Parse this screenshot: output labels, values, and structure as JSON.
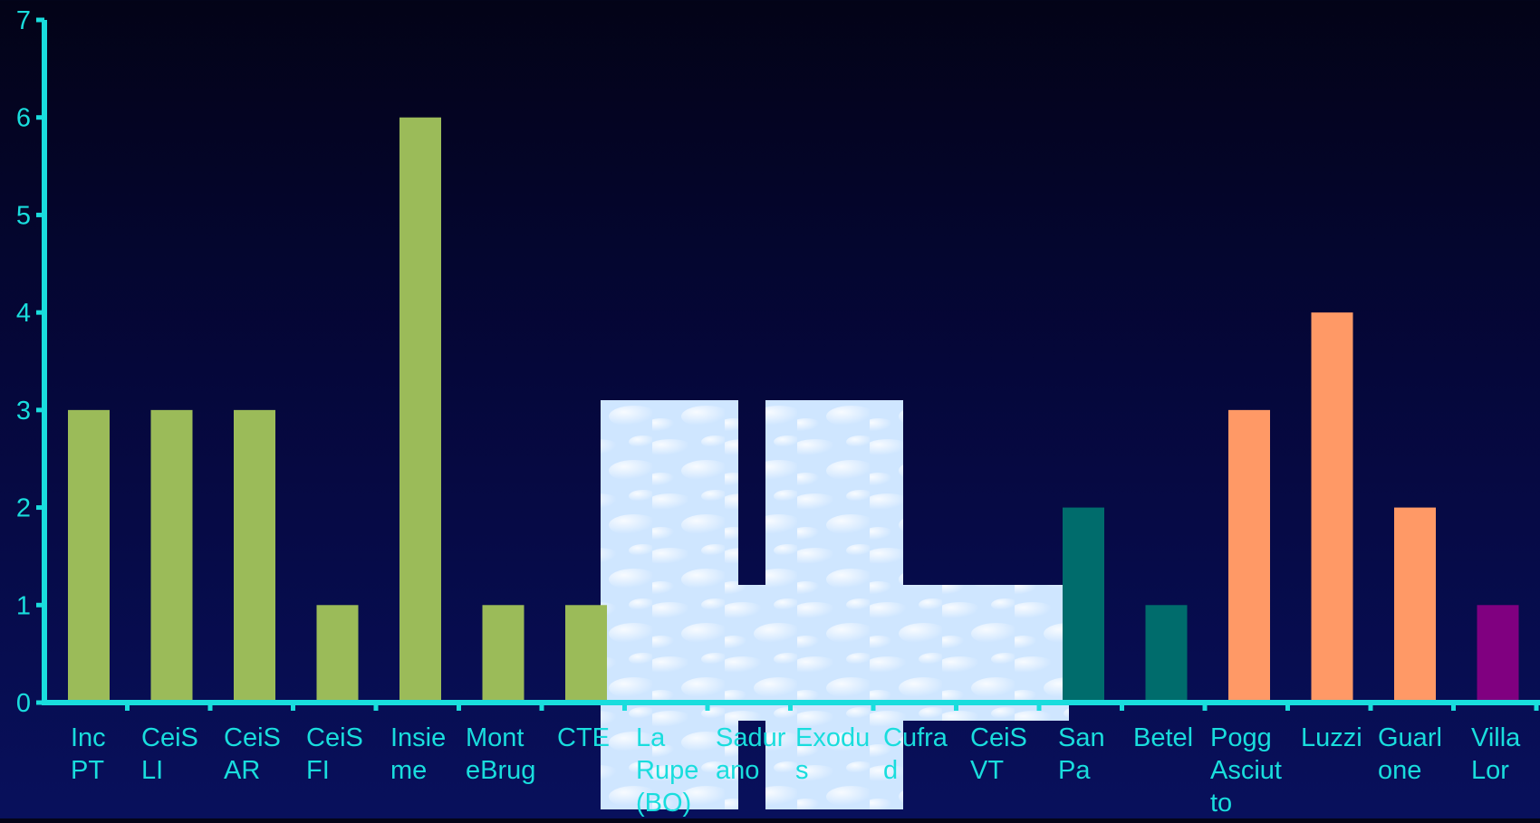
{
  "chart_data": {
    "type": "bar",
    "categories": [
      "Inc PT",
      "CeiS LI",
      "CeiS AR",
      "CeiS FI",
      "Insieme",
      "MonteBrug",
      "CTE",
      "La Rupe (BO)",
      "Saduriano",
      "Exodus",
      "Cufrad",
      "CeiS VT",
      "San Pa",
      "Betel",
      "Pogg Asciutto",
      "Luzzi",
      "Guarlone",
      "Villa Lor"
    ],
    "category_label_lines": [
      [
        "Inc",
        "PT"
      ],
      [
        "CeiS",
        "LI"
      ],
      [
        "CeiS",
        "AR"
      ],
      [
        "CeiS",
        "FI"
      ],
      [
        "Insie",
        "me"
      ],
      [
        "Mont",
        "eBrug"
      ],
      [
        "CTE"
      ],
      [
        "La",
        "Rupe",
        "(BO)"
      ],
      [
        "Sadur",
        "ano"
      ],
      [
        "Exodu",
        "s"
      ],
      [
        "Cufra",
        "d"
      ],
      [
        "CeiS",
        "VT"
      ],
      [
        "San",
        "Pa"
      ],
      [
        "Betel"
      ],
      [
        "Pogg",
        "Asciut",
        "to"
      ],
      [
        "Luzzi"
      ],
      [
        "Guarl",
        "one"
      ],
      [
        "Villa",
        "Lor"
      ]
    ],
    "values": [
      3,
      3,
      3,
      1,
      6,
      1,
      1,
      null,
      null,
      null,
      null,
      null,
      2,
      1,
      3,
      4,
      2,
      1
    ],
    "bar_colors": [
      "#9bbb59",
      "#9bbb59",
      "#9bbb59",
      "#9bbb59",
      "#9bbb59",
      "#9bbb59",
      "#9bbb59",
      "#9bbb59",
      "#9bbb59",
      "#9bbb59",
      "#9bbb59",
      "#9bbb59",
      "#006c6c",
      "#006c6c",
      "#ff9966",
      "#ff9966",
      "#ff9966",
      "#800080"
    ],
    "y_ticks": [
      "0",
      "1",
      "2",
      "3",
      "4",
      "5",
      "6",
      "7"
    ],
    "ylim": [
      0,
      7
    ],
    "title": "",
    "xlabel": "",
    "ylabel": "",
    "grid": false,
    "axis_color": "#19dddd",
    "label_color": "#19dddd"
  }
}
